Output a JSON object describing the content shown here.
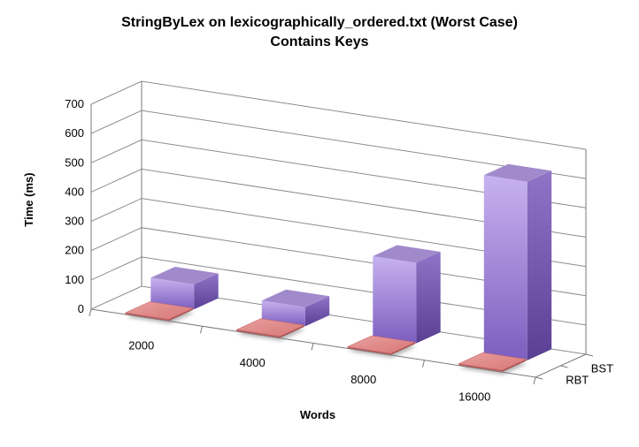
{
  "chart_data": {
    "type": "bar",
    "title": "StringByLex on lexicographically_ordered.txt (Worst Case)",
    "subtitle": "Contains Keys",
    "xlabel": "Words",
    "ylabel": "Time (ms)",
    "categories": [
      "2000",
      "4000",
      "8000",
      "16000"
    ],
    "y_ticks": [
      "0",
      "100",
      "200",
      "300",
      "400",
      "500",
      "600",
      "700"
    ],
    "ylim": [
      0,
      700
    ],
    "series": [
      {
        "name": "RBT",
        "values": [
          5,
          5,
          5,
          5
        ],
        "color": "#e38585"
      },
      {
        "name": "BST",
        "values": [
          85,
          65,
          275,
          610
        ],
        "color": "#9d7fd6"
      }
    ],
    "depth_labels": [
      "BST",
      "RBT"
    ],
    "grid": true,
    "legend": "none"
  }
}
